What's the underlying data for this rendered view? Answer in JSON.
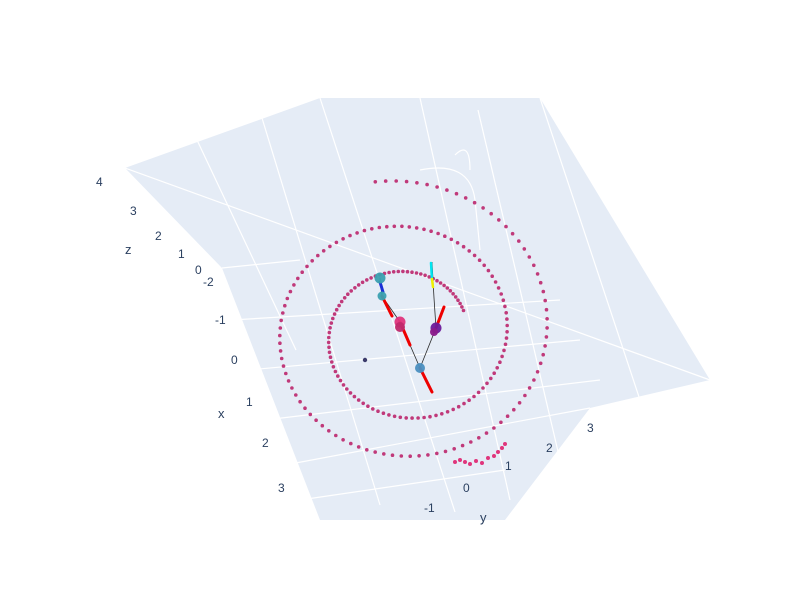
{
  "chart_data": {
    "type": "scatter3d",
    "title": "",
    "colors": {
      "scene_bg": "#e5ecf6",
      "grid": "#ffffff",
      "tick_text": "#2a3f5f",
      "points": "#c0397a",
      "highlight": "#e0357c",
      "nodes_teal": "#3aa0b0",
      "nodes_purple": "#6b1a9a",
      "links": "#2b2b2b",
      "vector_red": "#ee0000",
      "vector_blue": "#1a2fd6",
      "vector_cyan": "#00e5f0",
      "vector_yellow": "#f0f000"
    },
    "axes": {
      "x": {
        "title": "x",
        "ticks": [
          "-2",
          "-1",
          "0",
          "1",
          "2",
          "3"
        ]
      },
      "y": {
        "title": "y",
        "ticks": [
          "-1",
          "0",
          "1",
          "2",
          "3"
        ]
      },
      "z": {
        "title": "z",
        "ticks": [
          "0",
          "1",
          "2",
          "3",
          "4"
        ]
      }
    },
    "series": [
      {
        "kind": "spiral_points",
        "turns": 2.2,
        "count": 210
      },
      {
        "kind": "pendulum_nodes",
        "count": 7
      },
      {
        "kind": "vectors",
        "count": 6
      }
    ]
  }
}
